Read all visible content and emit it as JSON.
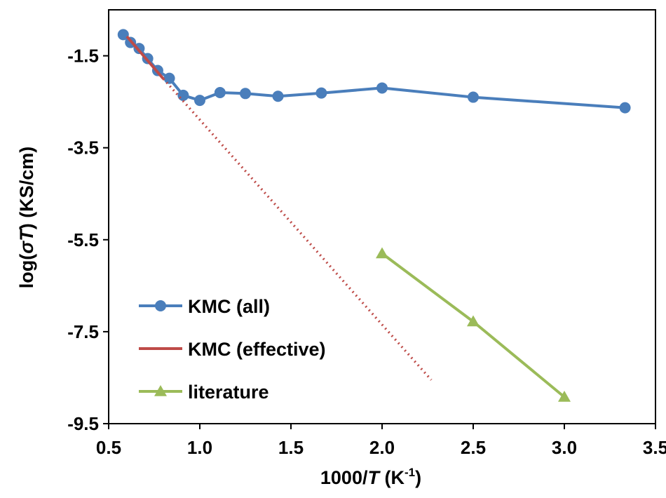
{
  "chart_data": {
    "type": "line",
    "title": "",
    "xlabel": {
      "prefix": "1000/",
      "var": "T",
      "unit_open": " (K",
      "unit_sup": "-1",
      "unit_close": ")"
    },
    "ylabel": {
      "prefix": "log(",
      "var": "σT",
      "suffix": ") (KS/cm)"
    },
    "xlim": [
      0.5,
      3.5
    ],
    "ylim": [
      -9.5,
      -0.5
    ],
    "xticks": [
      "0.5",
      "1.0",
      "1.5",
      "2.0",
      "2.5",
      "3.0",
      "3.5"
    ],
    "yticks": [
      "-1.5",
      "-3.5",
      "-5.5",
      "-7.5",
      "-9.5"
    ],
    "grid": false,
    "legend_position": "bottom-left",
    "series": [
      {
        "name": "KMC (all)",
        "color": "#4a7ebb",
        "marker": "circle",
        "line": "solid",
        "x": [
          0.58,
          0.62,
          0.667,
          0.714,
          0.769,
          0.833,
          0.909,
          1.0,
          1.111,
          1.25,
          1.429,
          1.667,
          2.0,
          2.5,
          3.333
        ],
        "y": [
          -1.04,
          -1.21,
          -1.34,
          -1.56,
          -1.82,
          -1.99,
          -2.36,
          -2.47,
          -2.3,
          -2.32,
          -2.38,
          -2.31,
          -2.2,
          -2.4,
          -2.63
        ]
      },
      {
        "name": "KMC (effective)",
        "color": "#be4b48",
        "marker": "none",
        "line": "solid",
        "x": [
          0.6,
          0.8
        ],
        "y": [
          -1.08,
          -2.0
        ]
      },
      {
        "name": "",
        "color": "#be4b48",
        "marker": "none",
        "line": "dotted",
        "x": [
          0.8,
          2.27
        ],
        "y": [
          -2.0,
          -8.55
        ]
      },
      {
        "name": "literature",
        "color": "#9bbb59",
        "marker": "triangle",
        "line": "solid",
        "x": [
          2.0,
          2.5,
          3.0
        ],
        "y": [
          -5.8,
          -7.28,
          -8.92
        ]
      }
    ]
  }
}
